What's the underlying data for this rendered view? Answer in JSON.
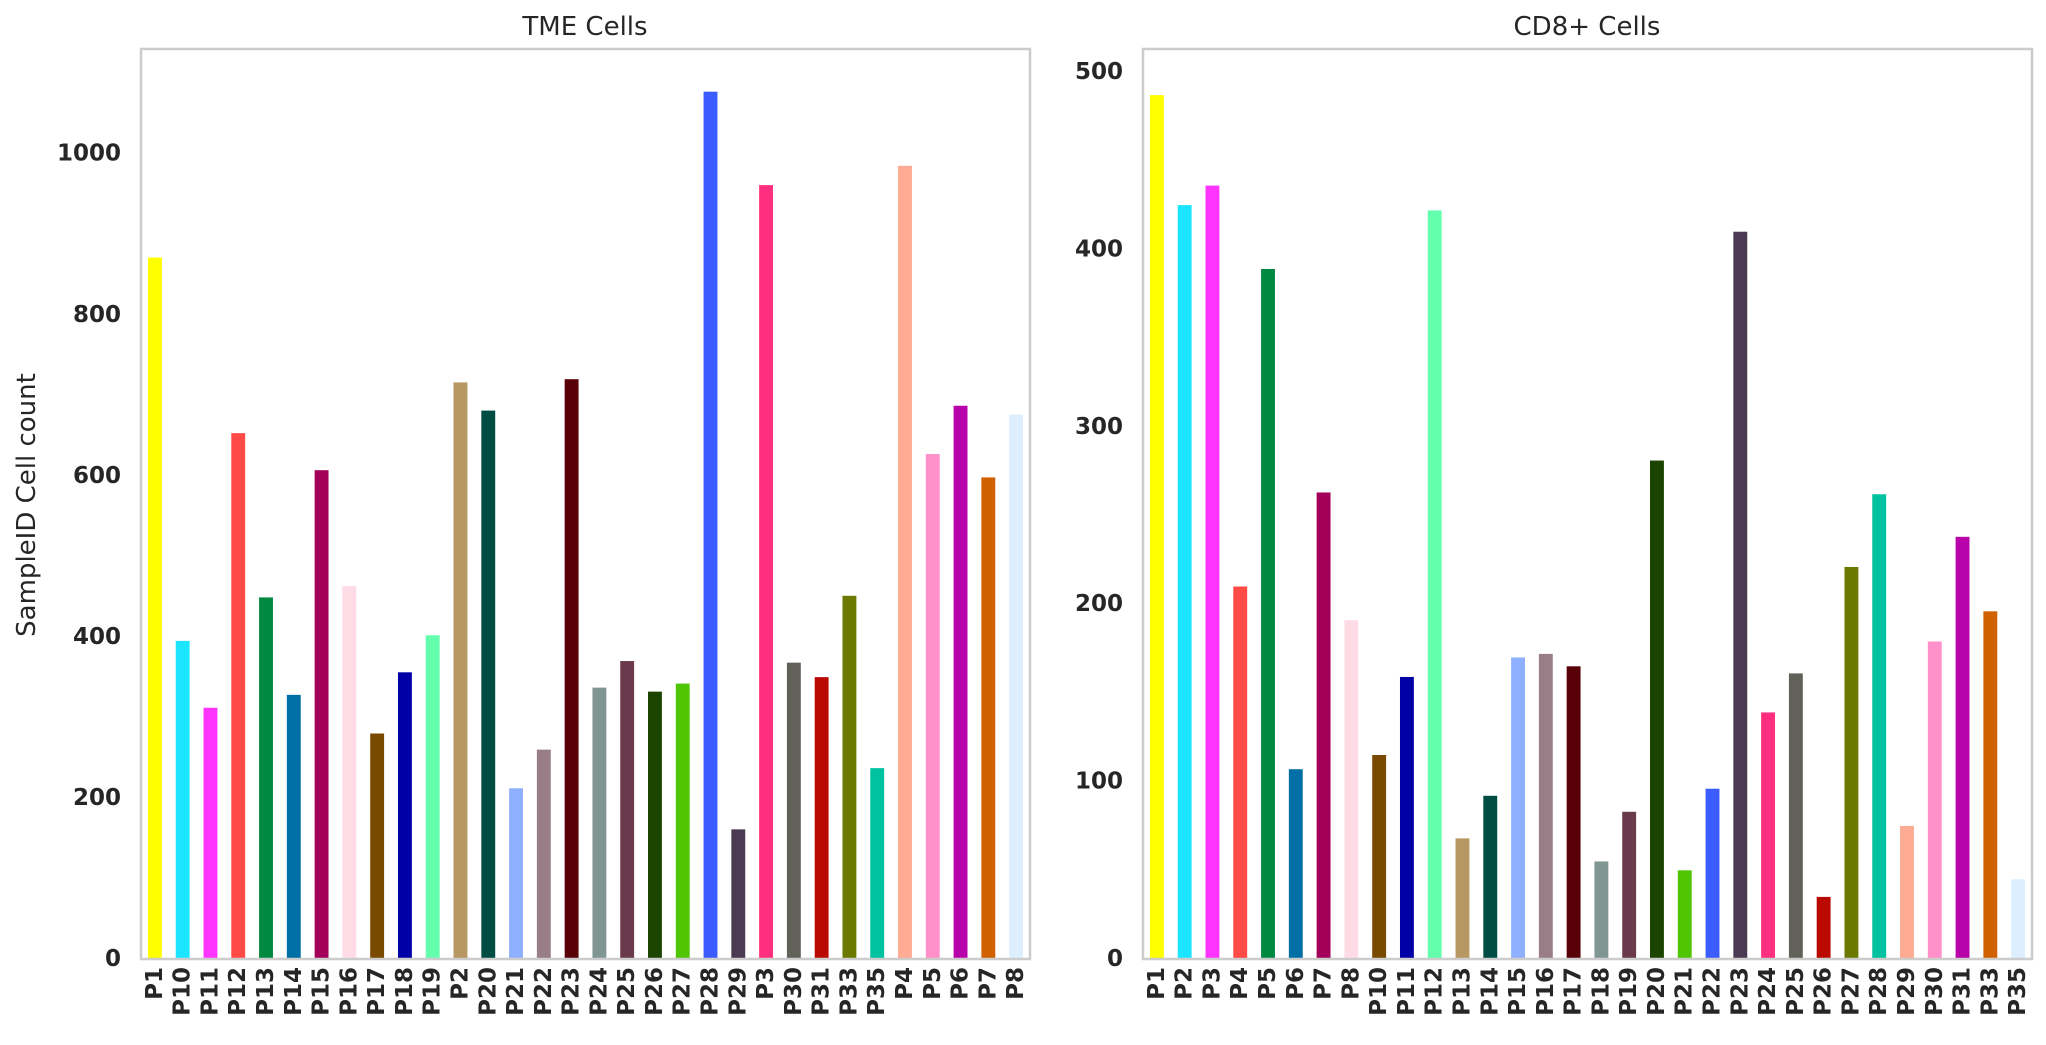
{
  "chart_data": [
    {
      "type": "bar",
      "title": "TME Cells",
      "xlabel": "",
      "ylabel": "SampleID Cell count",
      "ylim": [
        0,
        1130
      ],
      "yticks": [
        0,
        200,
        400,
        600,
        800,
        1000
      ],
      "grid": false,
      "categories": [
        "P1",
        "P10",
        "P11",
        "P12",
        "P13",
        "P14",
        "P15",
        "P16",
        "P17",
        "P18",
        "P19",
        "P2",
        "P20",
        "P21",
        "P22",
        "P23",
        "P24",
        "P25",
        "P26",
        "P27",
        "P28",
        "P29",
        "P3",
        "P30",
        "P31",
        "P33",
        "P35",
        "P4",
        "P5",
        "P6",
        "P7",
        "P8"
      ],
      "values": [
        871,
        395,
        312,
        653,
        449,
        328,
        607,
        463,
        280,
        356,
        402,
        716,
        681,
        212,
        260,
        720,
        337,
        370,
        332,
        342,
        1077,
        161,
        961,
        368,
        350,
        451,
        237,
        985,
        627,
        687,
        598,
        676
      ],
      "colors": [
        "#FFFF00",
        "#1CE6FF",
        "#FF34FF",
        "#FF4A46",
        "#008941",
        "#006FA6",
        "#A30059",
        "#FFDBE5",
        "#7A4900",
        "#0000A6",
        "#63FFAC",
        "#B79762",
        "#004D43",
        "#8FB0FF",
        "#997D87",
        "#5A0007",
        "#809693",
        "#6A3A4C",
        "#1B4400",
        "#4FC601",
        "#3B5DFF",
        "#4A3B53",
        "#FF2F80",
        "#61615A",
        "#BA0900",
        "#6B7900",
        "#00C2A0",
        "#FFAA92",
        "#FF90C9",
        "#B903AA",
        "#D16100",
        "#DDEFFF"
      ]
    },
    {
      "type": "bar",
      "title": "CD8+ Cells",
      "xlabel": "",
      "ylabel": "",
      "ylim": [
        0,
        513
      ],
      "yticks": [
        0,
        100,
        200,
        300,
        400,
        500
      ],
      "grid": false,
      "categories": [
        "P1",
        "P2",
        "P3",
        "P4",
        "P5",
        "P6",
        "P7",
        "P8",
        "P10",
        "P11",
        "P12",
        "P13",
        "P14",
        "P15",
        "P16",
        "P17",
        "P18",
        "P19",
        "P20",
        "P21",
        "P22",
        "P23",
        "P24",
        "P25",
        "P26",
        "P27",
        "P28",
        "P29",
        "P30",
        "P31",
        "P33",
        "P35"
      ],
      "values": [
        487,
        425,
        436,
        210,
        389,
        107,
        263,
        191,
        115,
        159,
        422,
        68,
        92,
        170,
        172,
        165,
        55,
        83,
        281,
        50,
        96,
        410,
        139,
        161,
        35,
        221,
        262,
        75,
        179,
        238,
        196,
        45
      ],
      "colors": [
        "#FFFF00",
        "#1CE6FF",
        "#FF34FF",
        "#FF4A46",
        "#008941",
        "#006FA6",
        "#A30059",
        "#FFDBE5",
        "#7A4900",
        "#0000A6",
        "#63FFAC",
        "#B79762",
        "#004D43",
        "#8FB0FF",
        "#997D87",
        "#5A0007",
        "#809693",
        "#6A3A4C",
        "#1B4400",
        "#4FC601",
        "#3B5DFF",
        "#4A3B53",
        "#FF2F80",
        "#61615A",
        "#BA0900",
        "#6B7900",
        "#00C2A0",
        "#FFAA92",
        "#FF90C9",
        "#B903AA",
        "#D16100",
        "#DDEFFF"
      ]
    }
  ]
}
